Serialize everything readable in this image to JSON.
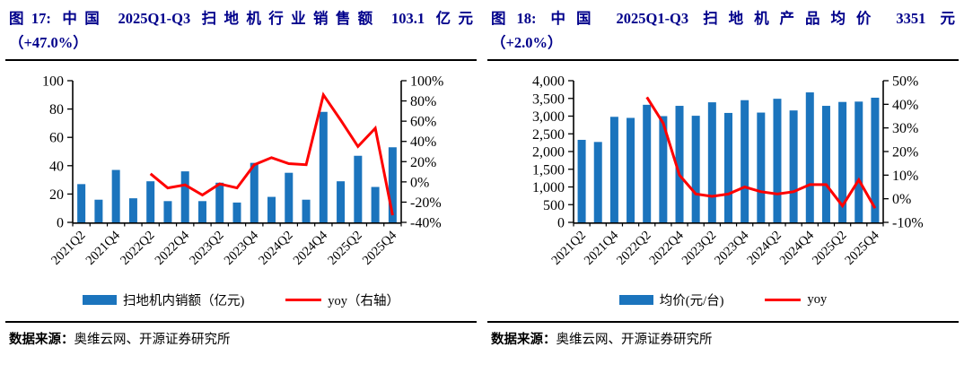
{
  "colors": {
    "bar": "#1b74bd",
    "line": "#fe0000",
    "title": "#00008b",
    "text": "#000000",
    "axis": "#000000"
  },
  "panels": [
    {
      "title_line1": "图17: 中国 2025Q1-Q3 扫地机行业销售额 103.1 亿元",
      "title_line2": "（+47.0%）",
      "legend_bar": "扫地机内销额（亿元)",
      "legend_line": "yoy（右轴）",
      "source_label": "数据来源：",
      "source_text": "奥维云网、开源证券研究所"
    },
    {
      "title_line1": "图18: 中国 2025Q1-Q3 扫地机产品均价 3351 元",
      "title_line2": "（+2.0%）",
      "legend_bar": "均价(元/台)",
      "legend_line": "yoy",
      "source_label": "数据来源：",
      "source_text": "奥维云网、开源证券研究所"
    }
  ],
  "chart_data": [
    {
      "type": "bar",
      "title": "图17: 中国 2025Q1-Q3 扫地机行业销售额 103.1 亿元（+47.0%）",
      "categories": [
        "2021Q2",
        "2021Q3",
        "2021Q4",
        "2022Q1",
        "2022Q2",
        "2022Q3",
        "2022Q4",
        "2023Q1",
        "2023Q2",
        "2023Q3",
        "2023Q4",
        "2024Q1",
        "2024Q2",
        "2024Q3",
        "2024Q4",
        "2025Q1",
        "2025Q2",
        "2025Q3",
        "2025Q4"
      ],
      "visible_x_tick_labels": [
        "2021Q2",
        "2021Q4",
        "2022Q2",
        "2022Q4",
        "2023Q2",
        "2023Q4",
        "2024Q2",
        "2024Q4",
        "2025Q2",
        "2025Q4"
      ],
      "series": [
        {
          "name": "扫地机内销额（亿元)",
          "type": "bar",
          "axis": "left",
          "values": [
            27,
            16,
            37,
            17,
            29,
            15,
            36,
            15,
            28,
            14,
            42,
            18,
            35,
            16,
            78,
            29,
            47,
            25,
            53
          ]
        },
        {
          "name": "yoy（右轴）",
          "type": "line",
          "axis": "right",
          "unit": "%",
          "values": [
            null,
            null,
            null,
            null,
            8,
            -6,
            -3,
            -13,
            -2,
            -6,
            17,
            24,
            18,
            17,
            86,
            61,
            35,
            53,
            -33
          ]
        }
      ],
      "left_axis": {
        "min": 0,
        "max": 100,
        "ticks": [
          0,
          20,
          40,
          60,
          80,
          100
        ],
        "labels": [
          "0",
          "20",
          "40",
          "60",
          "80",
          "100"
        ]
      },
      "right_axis": {
        "min": -40,
        "max": 100,
        "ticks": [
          -40,
          -20,
          0,
          20,
          40,
          60,
          80,
          100
        ],
        "labels": [
          "-40%",
          "-20%",
          "0%",
          "20%",
          "40%",
          "60%",
          "80%",
          "100%"
        ]
      },
      "grid": false,
      "legend_position": "bottom"
    },
    {
      "type": "bar",
      "title": "图18: 中国 2025Q1-Q3 扫地机产品均价 3351 元（+2.0%）",
      "categories": [
        "2021Q2",
        "2021Q3",
        "2021Q4",
        "2022Q1",
        "2022Q2",
        "2022Q3",
        "2022Q4",
        "2023Q1",
        "2023Q2",
        "2023Q3",
        "2023Q4",
        "2024Q1",
        "2024Q2",
        "2024Q3",
        "2024Q4",
        "2025Q1",
        "2025Q2",
        "2025Q3",
        "2025Q4"
      ],
      "visible_x_tick_labels": [
        "2021Q2",
        "2021Q4",
        "2022Q2",
        "2022Q4",
        "2023Q2",
        "2023Q4",
        "2024Q2",
        "2024Q4",
        "2025Q2",
        "2025Q4"
      ],
      "series": [
        {
          "name": "均价(元/台)",
          "type": "bar",
          "axis": "left",
          "values": [
            2330,
            2270,
            2980,
            2950,
            3320,
            3000,
            3290,
            3010,
            3390,
            3090,
            3450,
            3100,
            3490,
            3160,
            3670,
            3290,
            3400,
            3410,
            3520
          ]
        },
        {
          "name": "yoy",
          "type": "line",
          "axis": "right",
          "unit": "%",
          "values": [
            null,
            null,
            null,
            null,
            43,
            32,
            10,
            2,
            1,
            2,
            5,
            3,
            2,
            3,
            6,
            6,
            -3,
            8,
            -4
          ]
        }
      ],
      "left_axis": {
        "min": 0,
        "max": 4000,
        "ticks": [
          0,
          500,
          1000,
          1500,
          2000,
          2500,
          3000,
          3500,
          4000
        ],
        "labels": [
          "0",
          "500",
          "1,000",
          "1,500",
          "2,000",
          "2,500",
          "3,000",
          "3,500",
          "4,000"
        ]
      },
      "right_axis": {
        "min": -10,
        "max": 50,
        "ticks": [
          -10,
          0,
          10,
          20,
          30,
          40,
          50
        ],
        "labels": [
          "-10%",
          "0%",
          "10%",
          "20%",
          "30%",
          "40%",
          "50%"
        ]
      },
      "grid": false,
      "legend_position": "bottom"
    }
  ]
}
